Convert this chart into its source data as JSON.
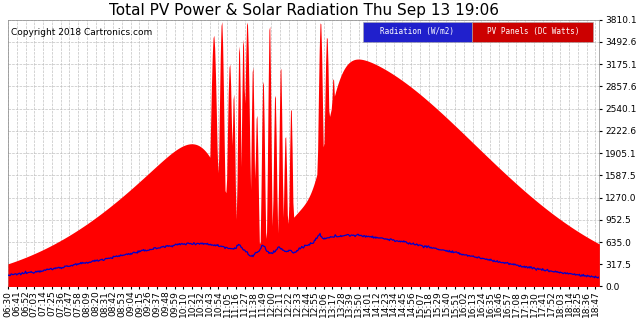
{
  "title": "Total PV Power & Solar Radiation Thu Sep 13 19:06",
  "copyright": "Copyright 2018 Cartronics.com",
  "legend_radiation": "Radiation (W/m2)",
  "legend_pv": "PV Panels (DC Watts)",
  "y_ticks": [
    0.0,
    317.5,
    635.0,
    952.5,
    1270.0,
    1587.5,
    1905.1,
    2222.6,
    2540.1,
    2857.6,
    3175.1,
    3492.6,
    3810.1
  ],
  "y_max": 3810.1,
  "bg_color": "#ffffff",
  "grid_color": "#bbbbbb",
  "pv_color": "#ff0000",
  "radiation_color": "#0000cc",
  "title_fontsize": 11,
  "copyright_fontsize": 6.5,
  "axis_fontsize": 6.5,
  "tick_interval_min": 11
}
